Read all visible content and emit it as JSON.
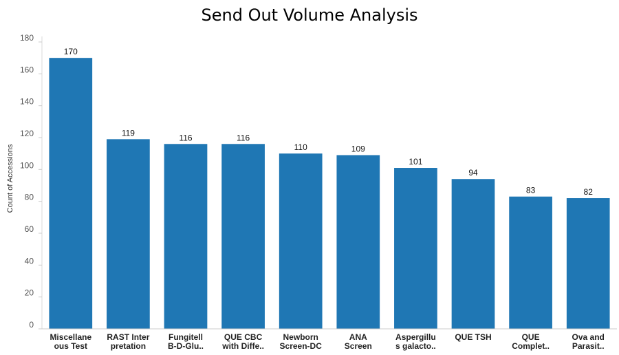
{
  "chart_data": {
    "type": "bar",
    "title": "Send Out Volume Analysis",
    "xlabel": "",
    "ylabel": "Count of Accessions",
    "ylim": [
      0,
      180
    ],
    "yticks": [
      0,
      20,
      40,
      60,
      80,
      100,
      120,
      140,
      160,
      180
    ],
    "grid": false,
    "bar_color": "#1f77b4",
    "categories": [
      [
        "Miscellane",
        "ous Test"
      ],
      [
        "RAST Inter",
        "pretation"
      ],
      [
        "Fungitell",
        "B-D-Glu.."
      ],
      [
        "QUE CBC",
        "with Diffe.."
      ],
      [
        "Newborn",
        "Screen-DC"
      ],
      [
        "ANA",
        "Screen"
      ],
      [
        "Aspergillu",
        "s galacto.."
      ],
      [
        "QUE TSH"
      ],
      [
        "QUE",
        "Complet.."
      ],
      [
        "Ova and",
        "Parasit.."
      ]
    ],
    "values": [
      170,
      119,
      116,
      116,
      110,
      109,
      101,
      94,
      83,
      82
    ]
  }
}
